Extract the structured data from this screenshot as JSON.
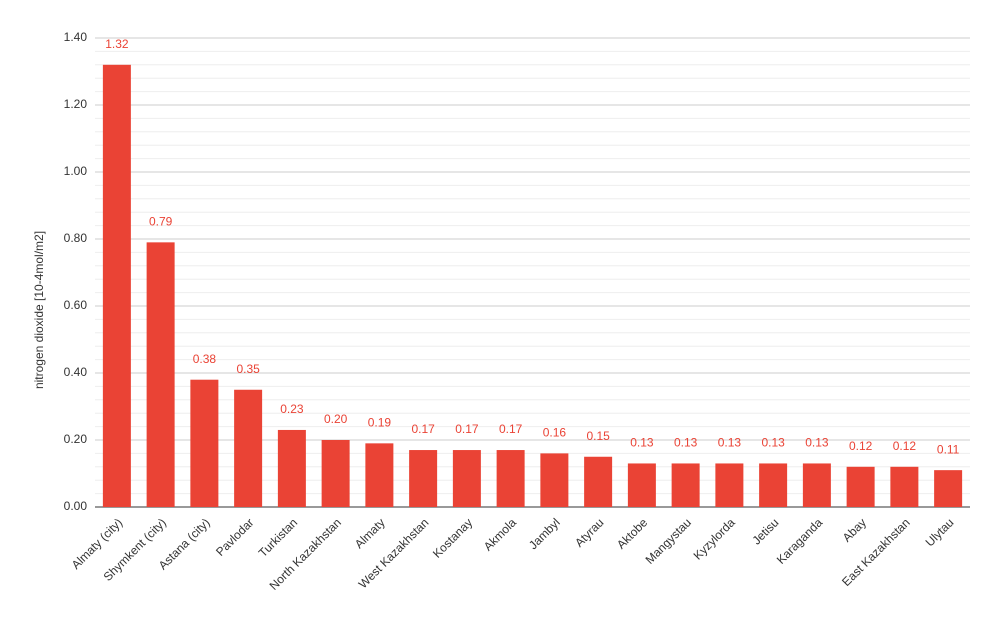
{
  "chart_data": {
    "type": "bar",
    "y_label": "nitrogen dioxide [10-4mol/m2]",
    "categories": [
      "Almaty (city)",
      "Shymkent (city)",
      "Astana (city)",
      "Pavlodar",
      "Turkistan",
      "North Kazakhstan",
      "Almaty",
      "West Kazakhstan",
      "Kostanay",
      "Akmola",
      "Jambyl",
      "Atyrau",
      "Aktobe",
      "Mangystau",
      "Kyzylorda",
      "Jetisu",
      "Karaganda",
      "Abay",
      "East Kazakhstan",
      "Ulytau"
    ],
    "values": [
      1.32,
      0.79,
      0.38,
      0.35,
      0.23,
      0.2,
      0.19,
      0.17,
      0.17,
      0.17,
      0.16,
      0.15,
      0.13,
      0.13,
      0.13,
      0.13,
      0.13,
      0.12,
      0.12,
      0.11
    ],
    "value_labels": [
      "1.32",
      "0.79",
      "0.38",
      "0.35",
      "0.23",
      "0.20",
      "0.19",
      "0.17",
      "0.17",
      "0.17",
      "0.16",
      "0.15",
      "0.13",
      "0.13",
      "0.13",
      "0.13",
      "0.13",
      "0.12",
      "0.12",
      "0.11"
    ],
    "color": "#ea4335",
    "ylim": [
      0,
      1.4
    ],
    "yticks": [
      {
        "value": 0,
        "label": "0.00"
      },
      {
        "value": 0.2,
        "label": "0.20"
      },
      {
        "value": 0.4,
        "label": "0.40"
      },
      {
        "value": 0.6,
        "label": "0.60"
      },
      {
        "value": 0.8,
        "label": "0.80"
      },
      {
        "value": 1,
        "label": "1.00"
      },
      {
        "value": 1.2,
        "label": "1.20"
      },
      {
        "value": 1.4,
        "label": "1.40"
      }
    ],
    "yminorticks": [
      0.04,
      0.08,
      0.12,
      0.16,
      0.24,
      0.28,
      0.32,
      0.36,
      0.44,
      0.48,
      0.52,
      0.56,
      0.64,
      0.68,
      0.72,
      0.76,
      0.84,
      0.88,
      0.92,
      0.96,
      1.04,
      1.08,
      1.12,
      1.16,
      1.24,
      1.28,
      1.32,
      1.36
    ],
    "grid": true
  }
}
